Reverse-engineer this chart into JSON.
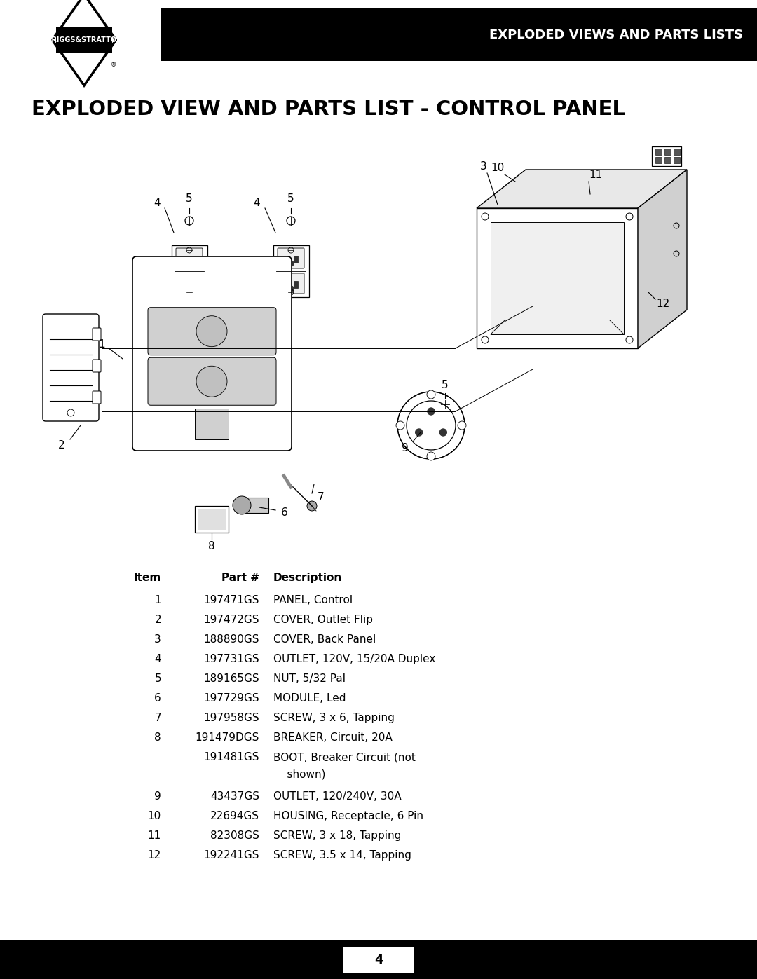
{
  "page_title": "EXPLODED VIEW AND PARTS LIST - CONTROL PANEL",
  "header_text": "EXPLODED VIEWS AND PARTS LISTS",
  "page_number": "4",
  "bg_color": "#ffffff",
  "header_bg": "#000000",
  "header_text_color": "#ffffff",
  "footer_bg": "#000000",
  "footer_text_color": "#ffffff",
  "title_fontsize": 20,
  "header_fontsize": 13,
  "parts": [
    {
      "item": "1",
      "part": "197471GS",
      "desc": "PANEL, Control",
      "desc2": ""
    },
    {
      "item": "2",
      "part": "197472GS",
      "desc": "COVER, Outlet Flip",
      "desc2": ""
    },
    {
      "item": "3",
      "part": "188890GS",
      "desc": "COVER, Back Panel",
      "desc2": ""
    },
    {
      "item": "4",
      "part": "197731GS",
      "desc": "OUTLET, 120V, 15/20A Duplex",
      "desc2": ""
    },
    {
      "item": "5",
      "part": "189165GS",
      "desc": "NUT, 5/32 Pal",
      "desc2": ""
    },
    {
      "item": "6",
      "part": "197729GS",
      "desc": "MODULE, Led",
      "desc2": ""
    },
    {
      "item": "7",
      "part": "197958GS",
      "desc": "SCREW, 3 x 6, Tapping",
      "desc2": ""
    },
    {
      "item": "8",
      "part": "191479DGS",
      "desc": "BREAKER, Circuit, 20A",
      "desc2": ""
    },
    {
      "item": "",
      "part": "191481GS",
      "desc": "BOOT, Breaker Circuit (not",
      "desc2": "    shown)"
    },
    {
      "item": "9",
      "part": "43437GS",
      "desc": "OUTLET, 120/240V, 30A",
      "desc2": ""
    },
    {
      "item": "10",
      "part": "22694GS",
      "desc": "HOUSING, Receptacle, 6 Pin",
      "desc2": ""
    },
    {
      "item": "11",
      "part": "82308GS",
      "desc": "SCREW, 3 x 18, Tapping",
      "desc2": ""
    },
    {
      "item": "12",
      "part": "192241GS",
      "desc": "SCREW, 3.5 x 14, Tapping",
      "desc2": ""
    }
  ]
}
